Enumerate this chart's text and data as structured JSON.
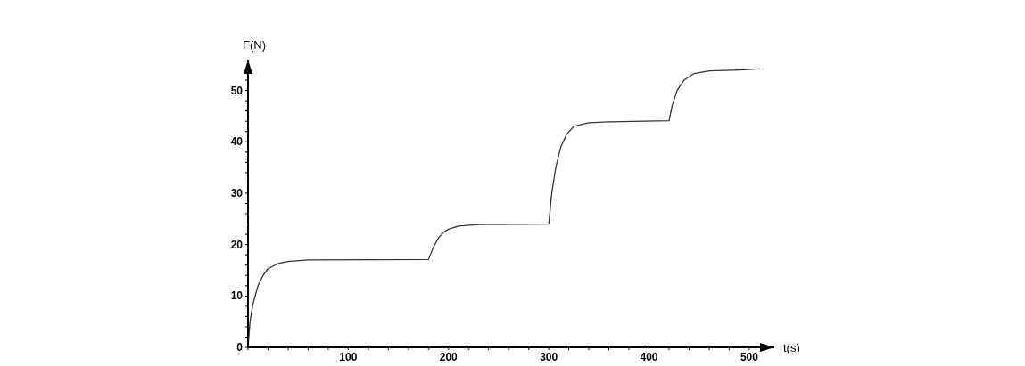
{
  "chart_data": {
    "type": "line",
    "xlabel": "t(s)",
    "ylabel": "F(N)",
    "xlim": [
      0,
      525
    ],
    "ylim": [
      0,
      56
    ],
    "xticks": [
      {
        "value": 0,
        "label": null
      },
      {
        "value": 20,
        "label": null
      },
      {
        "value": 40,
        "label": null
      },
      {
        "value": 60,
        "label": null
      },
      {
        "value": 80,
        "label": null
      },
      100,
      {
        "value": 120,
        "label": null
      },
      {
        "value": 140,
        "label": null
      },
      {
        "value": 160,
        "label": null
      },
      {
        "value": 180,
        "label": null
      },
      200,
      {
        "value": 220,
        "label": null
      },
      {
        "value": 240,
        "label": null
      },
      {
        "value": 260,
        "label": null
      },
      {
        "value": 280,
        "label": null
      },
      300,
      {
        "value": 320,
        "label": null
      },
      {
        "value": 340,
        "label": null
      },
      {
        "value": 360,
        "label": null
      },
      {
        "value": 380,
        "label": null
      },
      400,
      {
        "value": 420,
        "label": null
      },
      {
        "value": 440,
        "label": null
      },
      {
        "value": 460,
        "label": null
      },
      {
        "value": 480,
        "label": null
      },
      500
    ],
    "yticks": [
      0,
      {
        "value": 2,
        "label": null
      },
      {
        "value": 4,
        "label": null
      },
      {
        "value": 6,
        "label": null
      },
      {
        "value": 8,
        "label": null
      },
      10,
      {
        "value": 12,
        "label": null
      },
      {
        "value": 14,
        "label": null
      },
      {
        "value": 16,
        "label": null
      },
      {
        "value": 18,
        "label": null
      },
      20,
      {
        "value": 22,
        "label": null
      },
      {
        "value": 24,
        "label": null
      },
      {
        "value": 26,
        "label": null
      },
      {
        "value": 28,
        "label": null
      },
      30,
      {
        "value": 32,
        "label": null
      },
      {
        "value": 34,
        "label": null
      },
      {
        "value": 36,
        "label": null
      },
      {
        "value": 38,
        "label": null
      },
      40,
      {
        "value": 42,
        "label": null
      },
      {
        "value": 44,
        "label": null
      },
      {
        "value": 46,
        "label": null
      },
      {
        "value": 48,
        "label": null
      },
      50,
      {
        "value": 52,
        "label": null
      },
      {
        "value": 54,
        "label": null
      }
    ],
    "grid": false,
    "marker": "none",
    "line_style": "solid",
    "series": [
      {
        "color": "#333333",
        "x": [
          0,
          2,
          5,
          10,
          15,
          20,
          30,
          40,
          60,
          180,
          185,
          190,
          195,
          200,
          210,
          230,
          300,
          303,
          307,
          312,
          318,
          325,
          340,
          360,
          420,
          423,
          428,
          435,
          445,
          460,
          490,
          511
        ],
        "values": [
          0,
          5,
          8.5,
          12,
          14,
          15.3,
          16.3,
          16.7,
          17,
          17.1,
          19.5,
          21.3,
          22.4,
          23,
          23.6,
          23.9,
          24,
          30,
          35,
          39,
          41.5,
          43,
          43.7,
          43.9,
          44.1,
          47,
          50,
          52,
          53.3,
          53.8,
          54,
          54.2
        ]
      }
    ]
  }
}
